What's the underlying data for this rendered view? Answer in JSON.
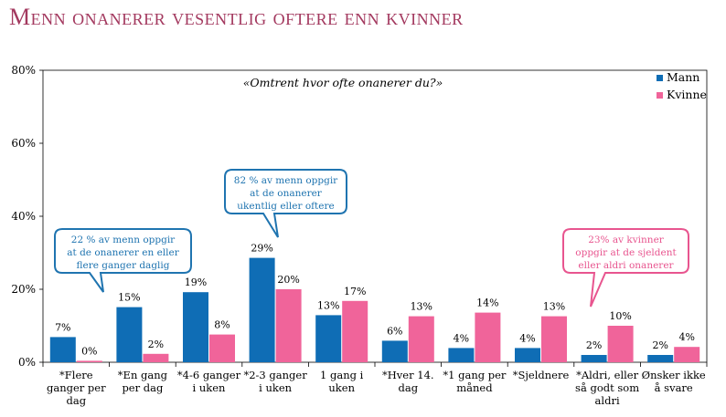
{
  "title": "Menn onanerer vesentlig oftere enn kvinner",
  "colors": {
    "mann": "#0f6db5",
    "kvinne": "#f0649a",
    "title": "#a3395f",
    "callout_blue": "#1f74b0",
    "callout_pink": "#e8558f"
  },
  "chart_data": {
    "type": "bar",
    "subtitle": "«Omtrent hvor ofte onanerer du?»",
    "categories": [
      [
        "*Flere",
        "ganger per",
        "dag"
      ],
      [
        "*En gang",
        "per dag"
      ],
      [
        "*4-6 ganger",
        "i uken"
      ],
      [
        "*2-3 ganger",
        "i uken"
      ],
      [
        "1 gang i",
        "uken"
      ],
      [
        "*Hver 14.",
        "dag"
      ],
      [
        "*1 gang per",
        "måned"
      ],
      [
        "*Sjeldnere"
      ],
      [
        "*Aldri, eller",
        "så godt som",
        "aldri"
      ],
      [
        "Ønsker ikke",
        "å svare"
      ]
    ],
    "series": [
      {
        "name": "Mann",
        "values": [
          7,
          15,
          19,
          29,
          13,
          6,
          4,
          4,
          2,
          2
        ],
        "labels": [
          "7%",
          "15%",
          "19%",
          "29%",
          "13%",
          "6%",
          "4%",
          "4%",
          "2%",
          "2%"
        ],
        "plotted": [
          6.9,
          15.1,
          19.2,
          28.6,
          12.9,
          5.9,
          3.9,
          3.9,
          2.0,
          2.0
        ]
      },
      {
        "name": "Kvinne",
        "values": [
          0,
          2,
          8,
          20,
          17,
          13,
          14,
          13,
          10,
          4
        ],
        "labels": [
          "0%",
          "2%",
          "8%",
          "20%",
          "17%",
          "13%",
          "14%",
          "13%",
          "10%",
          "4%"
        ],
        "plotted": [
          0.4,
          2.3,
          7.6,
          20.0,
          16.8,
          12.6,
          13.6,
          12.6,
          10.0,
          4.2
        ]
      }
    ],
    "yticks": [
      "0%",
      "20%",
      "40%",
      "60%",
      "80%"
    ],
    "ylim": [
      0,
      80
    ],
    "grid": false,
    "legend_position": "top-right",
    "annotations": [
      {
        "lines": [
          "22 % av menn oppgir",
          "at de onanerer en eller",
          "flere ganger daglig"
        ],
        "color": "blue"
      },
      {
        "lines": [
          "82 % av menn oppgir",
          "at de onanerer",
          "ukentlig eller oftere"
        ],
        "color": "blue"
      },
      {
        "lines": [
          "23% av kvinner",
          "oppgir at de sjeldent",
          "eller aldri onanerer"
        ],
        "color": "pink"
      }
    ]
  }
}
